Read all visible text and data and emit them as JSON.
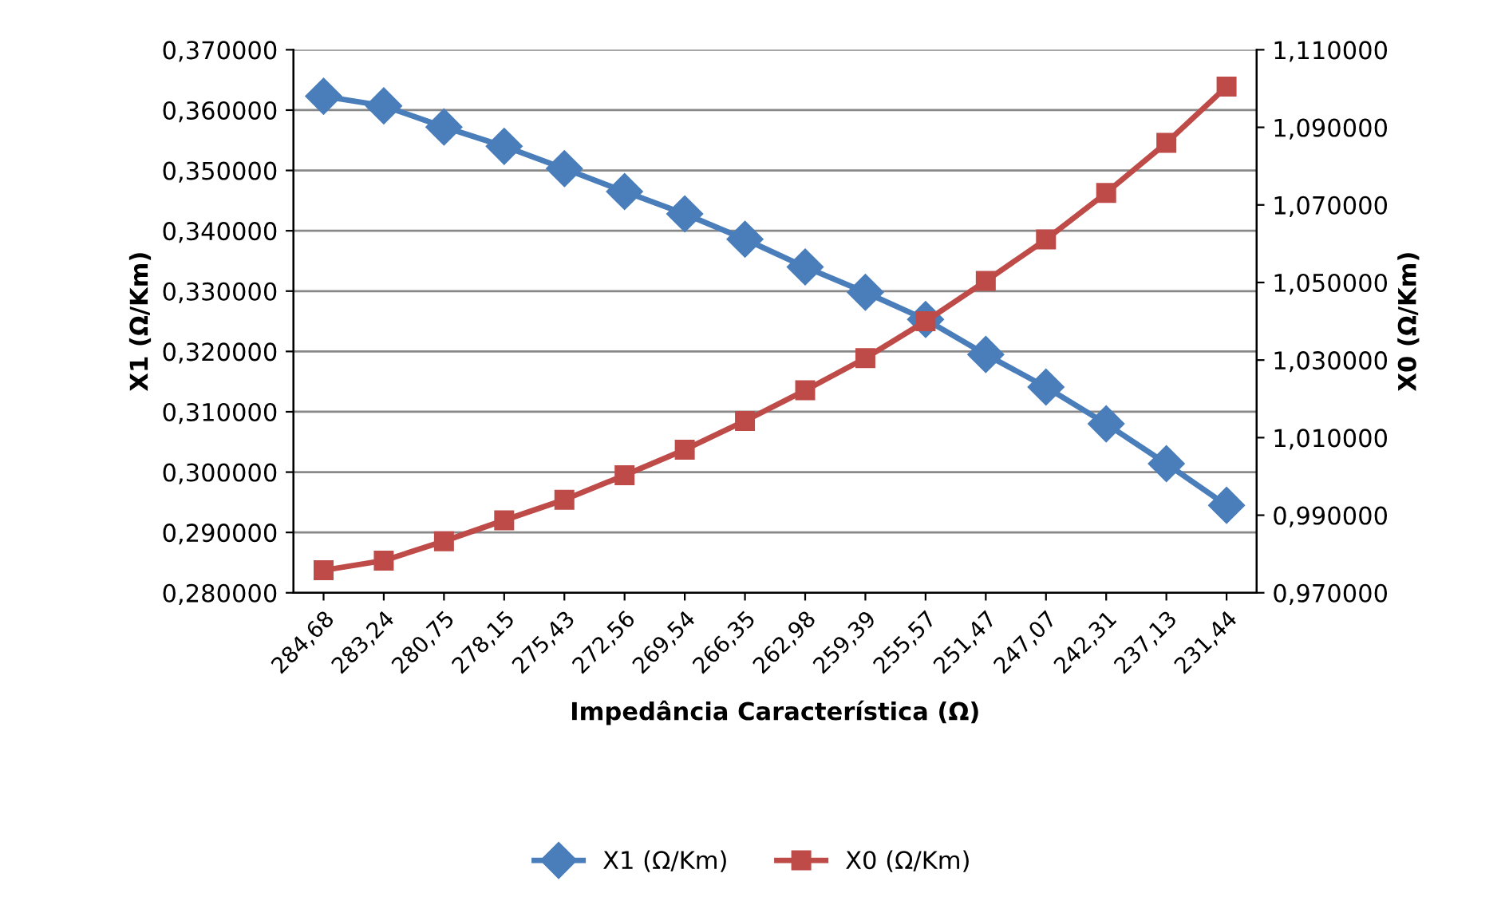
{
  "chart_data": {
    "type": "line",
    "xlabel": "Impedância Característica (Ω)",
    "ylabel": "X1 (Ω/Km)",
    "y2label": "X0 (Ω/Km)",
    "categories": [
      "284,68",
      "283,24",
      "280,75",
      "278,15",
      "275,43",
      "272,56",
      "269,54",
      "266,35",
      "262,98",
      "259,39",
      "255,57",
      "251,47",
      "247,07",
      "242,31",
      "237,13",
      "231,44"
    ],
    "series": [
      {
        "name": "X1 (Ω/Km)",
        "color": "#4a7ebb",
        "marker": "diamond",
        "values": [
          0.3623,
          0.3607,
          0.3572,
          0.354,
          0.3503,
          0.3465,
          0.3428,
          0.3386,
          0.334,
          0.3298,
          0.3253,
          0.3195,
          0.3141,
          0.308,
          0.3014,
          0.2945
        ]
      },
      {
        "name": "X0 (Ω/Km)",
        "color": "#be4b48",
        "marker": "square",
        "axis": "y2",
        "values": [
          0.9758,
          0.9783,
          0.9833,
          0.9887,
          0.994,
          1.0003,
          1.0069,
          1.0143,
          1.0222,
          1.0305,
          1.04,
          1.0504,
          1.0611,
          1.0731,
          1.086,
          1.1005
        ]
      }
    ],
    "ylim": [
      0.28,
      0.37
    ],
    "yticks": [
      {
        "value": 0.28,
        "label": "0,280000"
      },
      {
        "value": 0.29,
        "label": "0,290000"
      },
      {
        "value": 0.3,
        "label": "0,300000"
      },
      {
        "value": 0.31,
        "label": "0,310000"
      },
      {
        "value": 0.32,
        "label": "0,320000"
      },
      {
        "value": 0.33,
        "label": "0,330000"
      },
      {
        "value": 0.34,
        "label": "0,340000"
      },
      {
        "value": 0.35,
        "label": "0,350000"
      },
      {
        "value": 0.36,
        "label": "0,360000"
      },
      {
        "value": 0.37,
        "label": "0,370000"
      }
    ],
    "y2lim": [
      0.97,
      1.11
    ],
    "y2ticks": [
      {
        "value": 0.97,
        "label": "0,970000"
      },
      {
        "value": 0.99,
        "label": "0,990000"
      },
      {
        "value": 1.01,
        "label": "1,010000"
      },
      {
        "value": 1.03,
        "label": "1,030000"
      },
      {
        "value": 1.05,
        "label": "1,050000"
      },
      {
        "value": 1.07,
        "label": "1,070000"
      },
      {
        "value": 1.09,
        "label": "1,090000"
      },
      {
        "value": 1.11,
        "label": "1,110000"
      }
    ],
    "grid": "y",
    "legend": "bottom",
    "line_style": "solid"
  }
}
